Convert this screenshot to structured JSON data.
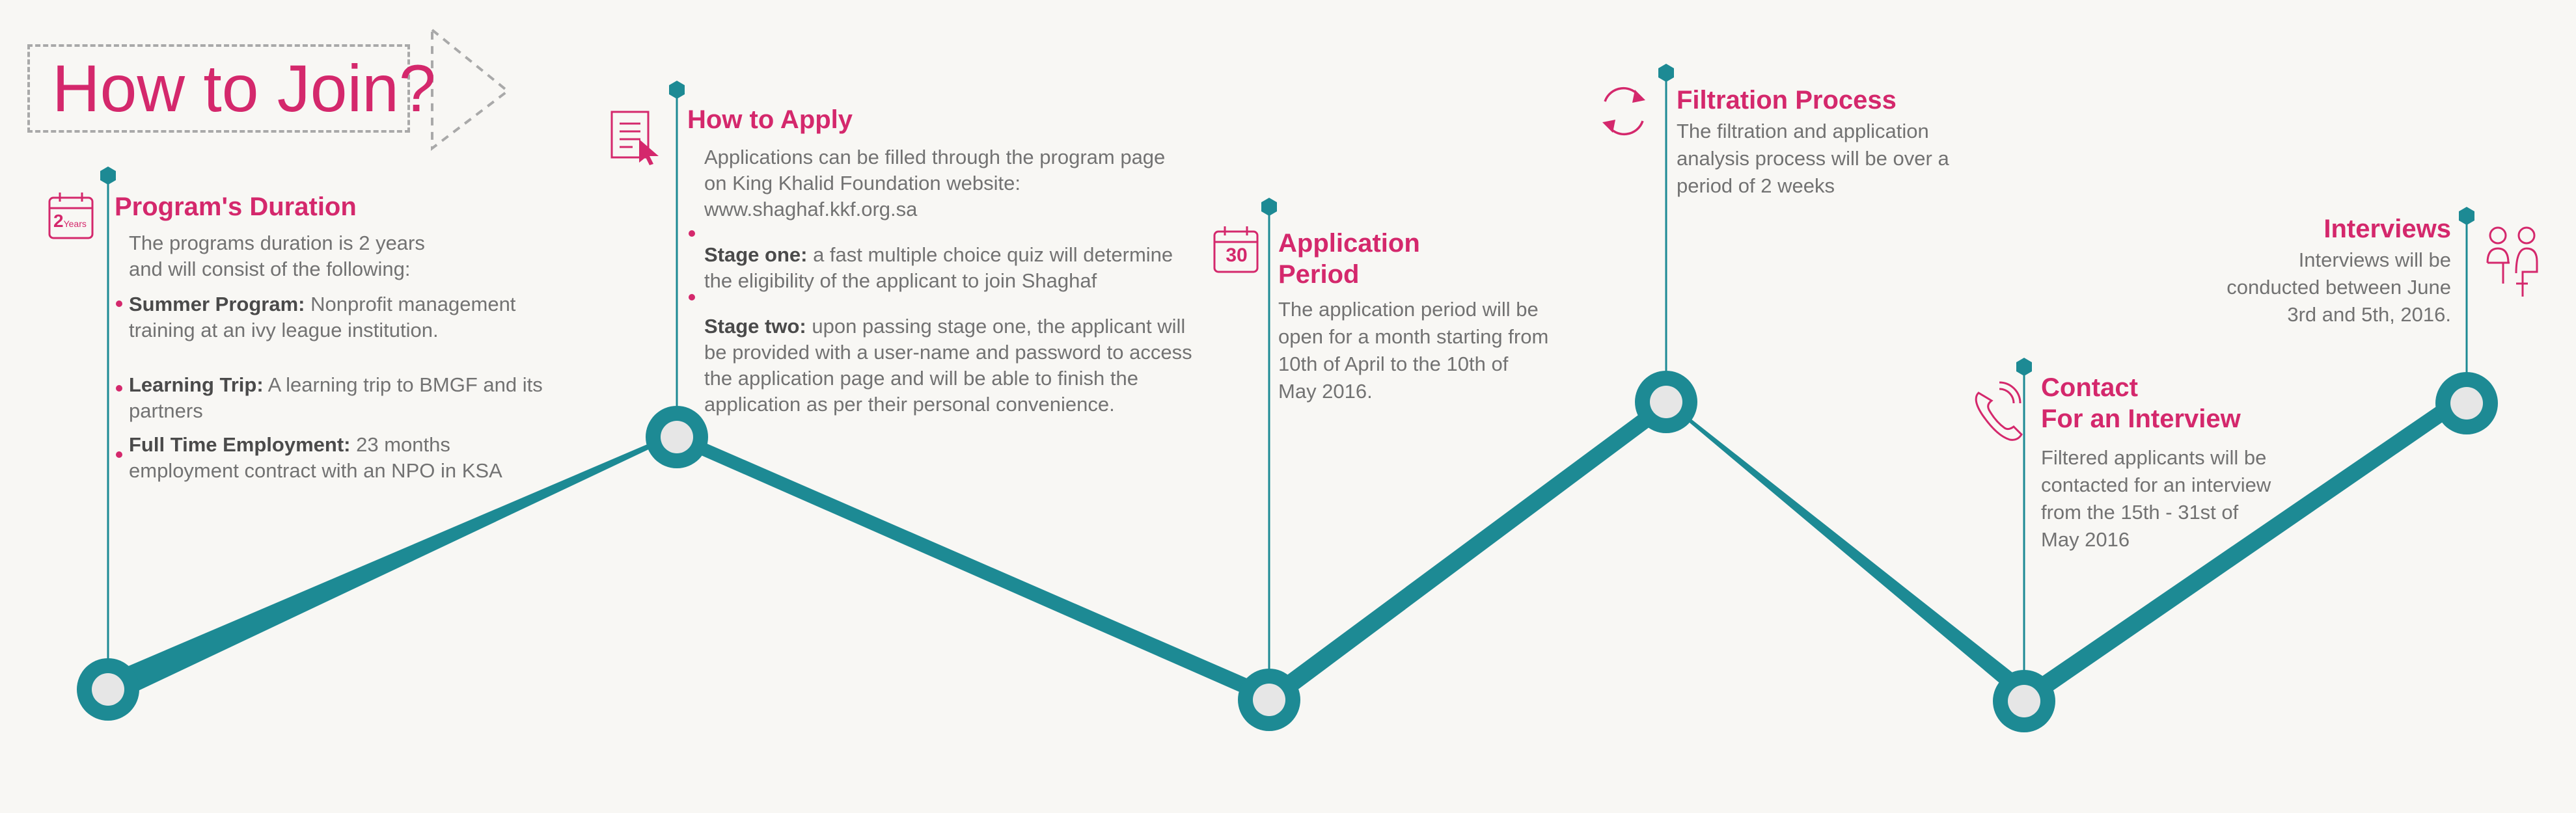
{
  "header": {
    "title": "How to Join?"
  },
  "colors": {
    "accent": "#d4286c",
    "teal": "#1d8a94",
    "node_fill": "#e6e6e6"
  },
  "icons": {
    "calendar_2years": "calendar-2-years-icon",
    "apply_doc": "document-cursor-icon",
    "calendar_30": "calendar-30-icon",
    "refresh": "refresh-arrows-icon",
    "phone": "phone-icon",
    "interview": "interview-people-icon"
  },
  "duration": {
    "badge_big": "2",
    "badge_small": "Years",
    "heading": "Program's Duration",
    "intro_1": "The programs duration is 2 years",
    "intro_2": "and will consist of the following:",
    "items": [
      {
        "label": "Summer Program:",
        "text": " Nonprofit management",
        "line2": "training at an ivy league institution."
      },
      {
        "label": "Learning Trip:",
        "text": " A learning trip to BMGF and its",
        "line2": "partners"
      },
      {
        "label": "Full Time Employment:",
        "text": " 23 months",
        "line2": "employment contract with an NPO in KSA"
      }
    ]
  },
  "apply": {
    "heading": "How to Apply",
    "intro_1": "Applications can be filled through the program page",
    "intro_2": "on King Khalid Foundation website:",
    "intro_3": "www.shaghaf.kkf.org.sa",
    "stage1_label": "Stage one:",
    "stage1_text": " a fast multiple choice quiz will determine",
    "stage1_line2": "the eligibility of the applicant to join Shaghaf",
    "stage2_label": "Stage two:",
    "stage2_text": " upon passing stage one, the applicant will",
    "stage2_line2": "be provided with a user-name and password to access",
    "stage2_line3": "the application page and will be able to finish the",
    "stage2_line4": "application as per their personal convenience."
  },
  "period": {
    "badge": "30",
    "heading_1": "Application",
    "heading_2": "Period",
    "lines": [
      "The application period will be",
      "open for a month starting from",
      "10th of April to the 10th of",
      "May 2016."
    ]
  },
  "filtration": {
    "heading": "Filtration Process",
    "lines": [
      "The filtration and application",
      "analysis process will be over a",
      "period of 2 weeks"
    ]
  },
  "contact": {
    "heading_1": "Contact",
    "heading_2": "For an Interview",
    "lines": [
      "Filtered applicants will be",
      "contacted for an interview",
      "from the 15th - 31st of",
      "May 2016"
    ]
  },
  "interviews": {
    "heading": "Interviews",
    "lines": [
      "Interviews will be",
      "conducted between June",
      "3rd and 5th, 2016."
    ]
  }
}
